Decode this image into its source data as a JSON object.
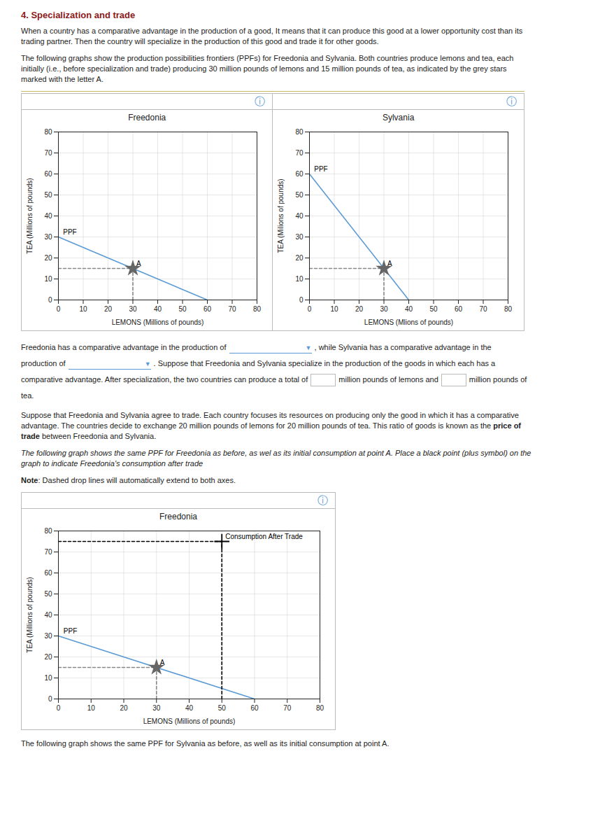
{
  "page": {
    "title": "4. Specialization and trade",
    "title_color": "#8b1a1a",
    "text_color": "#222222",
    "rule_color": "#c8b860",
    "border_color": "#bbbbbb",
    "icon": "ⓘ",
    "icon_color": "#5b9bd5",
    "intro": [
      [
        [
          {
            "text": "When a country has a comparative advantage in the production of a good, It means that it can produce this good at a lower opportunity cost than its"
          }
        ],
        [
          {
            "text": "trading partner. Then the country will specialize in the production of this good and trade it for other goods."
          }
        ]
      ],
      [
        [
          {
            "text": "The following graphs show the production possibilities frontiers (PPFs) for Freedonia and Sylvania. Both countries produce lemons and tea, each"
          }
        ],
        [
          {
            "text": "initially (i.e., before specialization and trade) producing 30 million pounds of lemons and 15 million pounds of tea, as indicated by the grey stars"
          }
        ],
        [
          {
            "text": "marked with the letter A."
          }
        ]
      ]
    ],
    "questions": [
      [
        [
          {
            "text": "Freedonia has a comparative advantage in the production of"
          },
          {
            "text": "▼",
            "style": "dropdown",
            "color": "#5b9bd5"
          },
          {
            "text": ", while Sylvania has a comparative advantage in the"
          }
        ],
        [
          {
            "text": "production of"
          },
          {
            "text": "▼",
            "style": "dropdown",
            "color": "#5b9bd5"
          },
          {
            "text": ". Suppose that Freedonia and Sylvania specialize in the production of the goods in which each has a"
          }
        ],
        [
          {
            "text": "comparative advantage. After specialization, the two countries can produce a total of"
          },
          {
            "style": "input"
          },
          {
            "text": "million pounds of lemons and"
          },
          {
            "style": "input"
          },
          {
            "text": "million pounds of"
          }
        ],
        [
          {
            "text": "tea."
          }
        ]
      ]
    ],
    "middle": [
      [
        [
          {
            "text": "Suppose that Freedonia and Sylvania agree to trade. Each country focuses its resources on producing only the good in which it has a comparative"
          }
        ],
        [
          {
            "text": "advantage. The countries decide to exchange 20 million pounds of lemons for 20 million pounds of tea. This ratio of goods is known as the "
          },
          {
            "text": "price of",
            "style": "bold"
          }
        ],
        [
          {
            "text": "trade",
            "style": "bold"
          },
          {
            "text": " between Freedonia and Sylvania."
          }
        ]
      ],
      [
        [
          {
            "text": "The following graph shows the same PPF for Freedonia as before, as wel as its initial consumption at point A. Place a black point (plus symbol) on the",
            "style": "italic"
          }
        ],
        [
          {
            "text": "graph to indicate Freedonia's consumption after trade",
            "style": "italic"
          }
        ]
      ],
      [
        [
          {
            "text": "Note",
            "style": "bold"
          },
          {
            "text": ": Dashed drop lines will automatically extend to both axes."
          }
        ]
      ]
    ],
    "outro": [
      [
        [
          {
            "text": "The following graph shows the same PPF for Sylvania as before, as well as its initial consumption at point A."
          }
        ]
      ]
    ]
  },
  "chart_data": [
    {
      "type": "line",
      "title": "Freedonia",
      "xlabel": "LEMONS (Millions of pounds)",
      "ylabel": "TEA (Millions of pounds)",
      "xlim": [
        0,
        80
      ],
      "ylim": [
        0,
        80
      ],
      "xticks": [
        0,
        10,
        20,
        30,
        40,
        50,
        60,
        70,
        80
      ],
      "yticks": [
        0,
        10,
        20,
        30,
        40,
        50,
        60,
        70,
        80
      ],
      "grid": true,
      "series": [
        {
          "color": "#5b9bd5",
          "x": [
            0,
            60
          ],
          "values": [
            30,
            0
          ]
        },
        {
          "color": "#888888",
          "line_style": "dashed",
          "x": [
            0,
            30
          ],
          "values": [
            15,
            15
          ]
        },
        {
          "color": "#888888",
          "line_style": "dashed",
          "x": [
            30,
            30
          ],
          "values": [
            0,
            15
          ]
        },
        {
          "type": "scatter",
          "marker": "star",
          "color": "#666666",
          "x": [
            30
          ],
          "values": [
            15
          ]
        }
      ],
      "annotations": [
        {
          "text": "PPF",
          "x": 0.5,
          "y": 30
        },
        {
          "text": "A",
          "x": 30,
          "y": 15
        }
      ]
    },
    {
      "type": "line",
      "title": "Sylvania",
      "xlabel": "LEMONS (Mlions of pounds)",
      "ylabel": "TEA (Milions of pounds)",
      "xlim": [
        0,
        80
      ],
      "ylim": [
        0,
        80
      ],
      "xticks": [
        0,
        10,
        20,
        30,
        40,
        50,
        60,
        70,
        80
      ],
      "yticks": [
        0,
        10,
        20,
        30,
        40,
        50,
        60,
        70,
        80
      ],
      "grid": true,
      "series": [
        {
          "color": "#5b9bd5",
          "x": [
            0,
            40
          ],
          "values": [
            60,
            0
          ]
        },
        {
          "color": "#888888",
          "line_style": "dashed",
          "x": [
            0,
            30
          ],
          "values": [
            15,
            15
          ]
        },
        {
          "color": "#888888",
          "line_style": "dashed",
          "x": [
            30,
            30
          ],
          "values": [
            0,
            15
          ]
        },
        {
          "type": "scatter",
          "marker": "star",
          "color": "#666666",
          "x": [
            30
          ],
          "values": [
            15
          ]
        }
      ],
      "annotations": [
        {
          "text": "PPF",
          "x": 0.5,
          "y": 60
        },
        {
          "text": "A",
          "x": 30,
          "y": 15
        }
      ]
    },
    {
      "type": "line",
      "title": "Freedonia",
      "xlabel": "LEMONS (Millions of pounds)",
      "ylabel": "TEA (Millions of pounds)",
      "xlim": [
        0,
        80
      ],
      "ylim": [
        0,
        80
      ],
      "xticks": [
        0,
        10,
        20,
        30,
        40,
        50,
        60,
        70,
        80
      ],
      "yticks": [
        0,
        10,
        20,
        30,
        40,
        50,
        60,
        70,
        80
      ],
      "grid": true,
      "series": [
        {
          "color": "#5b9bd5",
          "x": [
            0,
            60
          ],
          "values": [
            30,
            0
          ]
        },
        {
          "color": "#888888",
          "line_style": "dashed",
          "x": [
            0,
            30
          ],
          "values": [
            15,
            15
          ]
        },
        {
          "color": "#888888",
          "line_style": "dashed",
          "x": [
            30,
            30
          ],
          "values": [
            0,
            15
          ]
        },
        {
          "type": "scatter",
          "marker": "star",
          "color": "#666666",
          "x": [
            30
          ],
          "values": [
            15
          ]
        },
        {
          "color": "#000000",
          "line_style": "dashed",
          "x": [
            0,
            50
          ],
          "values": [
            75,
            75
          ]
        },
        {
          "color": "#000000",
          "line_style": "dashed",
          "x": [
            50,
            50
          ],
          "values": [
            0,
            75
          ]
        },
        {
          "type": "scatter",
          "marker": "plus",
          "color": "#000000",
          "x": [
            50
          ],
          "values": [
            75
          ]
        }
      ],
      "annotations": [
        {
          "text": "PPF",
          "x": 0.5,
          "y": 30
        },
        {
          "text": "A",
          "x": 30,
          "y": 15
        },
        {
          "text": "Consumption After Trade",
          "x": 50,
          "y": 75
        }
      ]
    }
  ]
}
